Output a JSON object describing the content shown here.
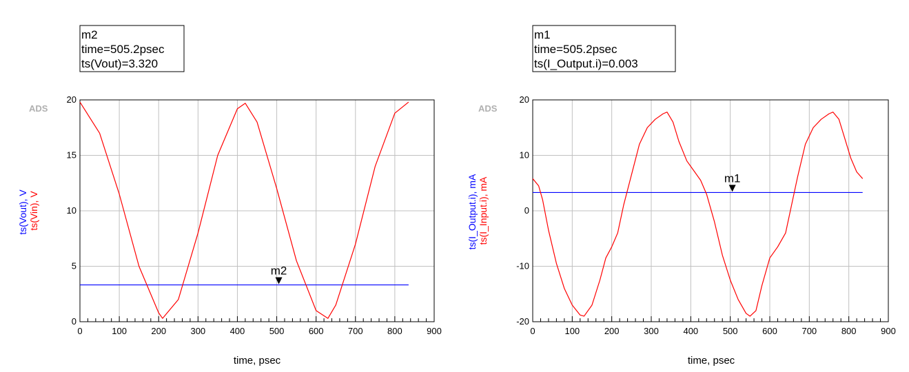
{
  "charts": [
    {
      "marker_box": {
        "lines": [
          "m2",
          "time=505.2psec",
          "ts(Vout)=3.320"
        ]
      },
      "watermark": "ADS",
      "marker_label": "m2",
      "chart_data": {
        "type": "line",
        "xlabel": "time, psec",
        "ylabel_parts": [
          {
            "text": "ts(Vout), V",
            "color": "#0000ff"
          },
          {
            "text": "ts(Vin), V",
            "color": "#ff0000"
          }
        ],
        "xlim": [
          0,
          900
        ],
        "ylim": [
          0,
          20
        ],
        "xticks": [
          "0",
          "100",
          "200",
          "300",
          "400",
          "500",
          "600",
          "700",
          "800",
          "900"
        ],
        "yticks": [
          "0",
          "5",
          "10",
          "15",
          "20"
        ],
        "grid": true,
        "series": [
          {
            "name": "ts(Vout)",
            "color": "#0000ff",
            "x": [
              0,
              835
            ],
            "y": [
              3.32,
              3.32
            ]
          },
          {
            "name": "ts(Vin)",
            "color": "#ff0000",
            "x": [
              0,
              50,
              100,
              150,
              200,
              210,
              250,
              300,
              350,
              400,
              420,
              450,
              500,
              550,
              600,
              630,
              650,
              700,
              750,
              800,
              835
            ],
            "y": [
              19.8,
              17.0,
              11.5,
              5.0,
              0.8,
              0.3,
              2.0,
              8.0,
              15.0,
              19.2,
              19.7,
              18.0,
              12.0,
              5.5,
              1.0,
              0.3,
              1.5,
              7.0,
              14.0,
              18.8,
              19.8
            ]
          }
        ],
        "marker": {
          "x": 505.2,
          "y": 3.32
        }
      }
    },
    {
      "marker_box": {
        "lines": [
          "m1",
          "time=505.2psec",
          "ts(I_Output.i)=0.003"
        ]
      },
      "watermark": "ADS",
      "marker_label": "m1",
      "chart_data": {
        "type": "line",
        "xlabel": "time, psec",
        "ylabel_parts": [
          {
            "text": "ts(I_Output.i), mA",
            "color": "#0000ff"
          },
          {
            "text": "ts(I_Input.i), mA",
            "color": "#ff0000"
          }
        ],
        "xlim": [
          0,
          900
        ],
        "ylim": [
          -20,
          20
        ],
        "xticks": [
          "0",
          "100",
          "200",
          "300",
          "400",
          "500",
          "600",
          "700",
          "800",
          "900"
        ],
        "yticks": [
          "-20",
          "-10",
          "0",
          "10",
          "20"
        ],
        "grid": true,
        "series": [
          {
            "name": "ts(I_Output.i)",
            "color": "#0000ff",
            "x": [
              0,
              835
            ],
            "y": [
              3.3,
              3.3
            ]
          },
          {
            "name": "ts(I_Input.i)",
            "color": "#ff0000",
            "x": [
              0,
              15,
              25,
              40,
              60,
              80,
              100,
              120,
              130,
              150,
              170,
              185,
              200,
              215,
              230,
              250,
              270,
              290,
              310,
              330,
              340,
              355,
              370,
              390,
              410,
              425,
              440,
              460,
              480,
              500,
              520,
              540,
              550,
              565,
              580,
              600,
              620,
              640,
              655,
              670,
              690,
              710,
              730,
              750,
              760,
              775,
              790,
              805,
              820,
              835
            ],
            "y": [
              5.8,
              4.5,
              2.0,
              -3.5,
              -9.5,
              -14.0,
              -17.0,
              -18.8,
              -19.0,
              -17.0,
              -12.5,
              -8.5,
              -6.5,
              -4.0,
              1.0,
              6.5,
              12.0,
              15.0,
              16.5,
              17.5,
              17.8,
              16.0,
              12.5,
              9.0,
              7.0,
              5.5,
              3.0,
              -2.0,
              -8.0,
              -12.5,
              -16.0,
              -18.5,
              -19.0,
              -18.0,
              -13.5,
              -8.5,
              -6.5,
              -4.0,
              1.0,
              6.0,
              12.0,
              15.0,
              16.5,
              17.5,
              17.8,
              16.5,
              13.0,
              9.5,
              7.0,
              5.8
            ]
          }
        ],
        "marker": {
          "x": 505.2,
          "y": 3.3
        }
      }
    }
  ]
}
